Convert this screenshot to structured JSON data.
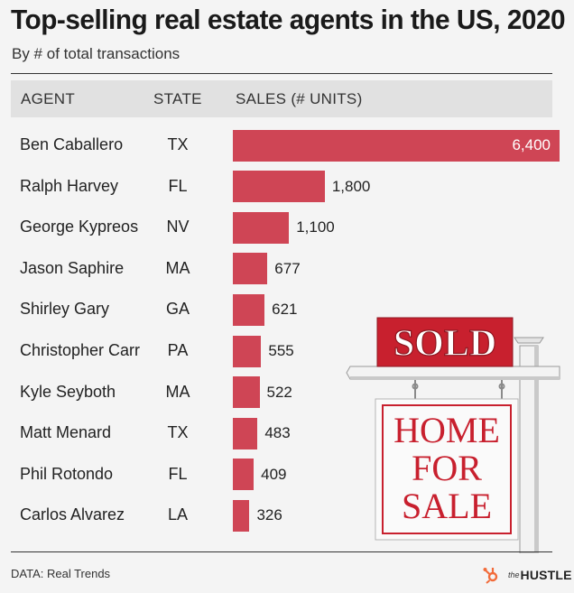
{
  "title": "Top-selling real estate agents in the US, 2020",
  "subtitle": "By # of total transactions",
  "columns": {
    "agent": "AGENT",
    "state": "STATE",
    "sales": "SALES (# UNITS)"
  },
  "source": "DATA: Real Trends",
  "brand": {
    "the": "the",
    "name": "HUSTLE"
  },
  "sign": {
    "top_text": "SOLD",
    "line1": "HOME",
    "line2": "FOR",
    "line3": "SALE"
  },
  "colors": {
    "bar": "#cf4555",
    "sign_red": "#c8202e",
    "background": "#f4f4f4",
    "header": "#e1e1e1"
  },
  "chart_data": {
    "type": "bar",
    "orientation": "horizontal",
    "title": "Top-selling real estate agents in the US, 2020",
    "subtitle": "By # of total transactions",
    "categories": [
      "Ben Caballero",
      "Ralph Harvey",
      "George Kypreos",
      "Jason Saphire",
      "Shirley Gary",
      "Christopher Carr",
      "Kyle Seyboth",
      "Matt Menard",
      "Phil Rotondo",
      "Carlos Alvarez"
    ],
    "states": [
      "TX",
      "FL",
      "NV",
      "MA",
      "GA",
      "PA",
      "MA",
      "TX",
      "FL",
      "LA"
    ],
    "values": [
      6400,
      1800,
      1100,
      677,
      621,
      555,
      522,
      483,
      409,
      326
    ],
    "value_labels": [
      "6,400",
      "1,800",
      "1,100",
      "677",
      "621",
      "555",
      "522",
      "483",
      "409",
      "326"
    ],
    "xlabel": "SALES (# UNITS)",
    "xlim": [
      0,
      6400
    ],
    "grid": false,
    "legend": "none"
  }
}
